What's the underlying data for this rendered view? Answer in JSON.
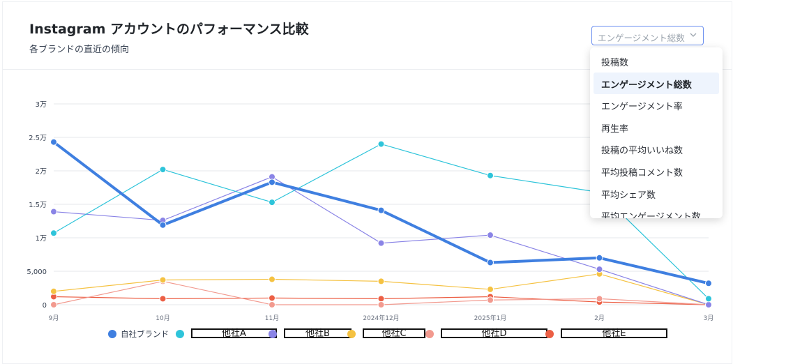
{
  "header": {
    "title": "Instagram アカウントのパフォーマンス比較",
    "subtitle": "各ブランドの直近の傾向"
  },
  "metric_select": {
    "value": "エンゲージメント総数",
    "options": [
      "投稿数",
      "エンゲージメント総数",
      "エンゲージメント率",
      "再生率",
      "投稿の平均いいね数",
      "平均投稿コメント数",
      "平均シェア数",
      "平均エンゲージメント数"
    ],
    "selected_index": 1
  },
  "chart_data": {
    "type": "line",
    "title": "",
    "xlabel": "",
    "ylabel": "",
    "categories": [
      "9月",
      "10月",
      "11月",
      "2024年12月",
      "2025年1月",
      "2月",
      "3月"
    ],
    "ylim": [
      0,
      30000
    ],
    "yticks": [
      {
        "value": 0,
        "label": "0"
      },
      {
        "value": 5000,
        "label": "5,000"
      },
      {
        "value": 10000,
        "label": "1万"
      },
      {
        "value": 15000,
        "label": "1.5万"
      },
      {
        "value": 20000,
        "label": "2万"
      },
      {
        "value": 25000,
        "label": "2.5万"
      },
      {
        "value": 30000,
        "label": "3万"
      }
    ],
    "grid": true,
    "legend_position": "bottom",
    "series": [
      {
        "name": "自社ブランド",
        "color": "#3f7fe0",
        "values": [
          24300,
          11900,
          18300,
          14100,
          6300,
          7000,
          3200
        ]
      },
      {
        "name": "他社A",
        "color": "#2ec4da",
        "values": [
          10700,
          20200,
          15300,
          24000,
          19300,
          16800,
          900
        ]
      },
      {
        "name": "他社B",
        "color": "#8a84e6",
        "values": [
          13900,
          12600,
          19100,
          9200,
          10400,
          5300,
          0
        ]
      },
      {
        "name": "他社C",
        "color": "#f5c242",
        "values": [
          2000,
          3700,
          3800,
          3500,
          2300,
          4600,
          0
        ]
      },
      {
        "name": "他社D",
        "color": "#f29a8f",
        "values": [
          0,
          3500,
          0,
          0,
          700,
          900,
          0
        ]
      },
      {
        "name": "他社E",
        "color": "#ec5f45",
        "values": [
          1200,
          900,
          1000,
          900,
          1200,
          400,
          0
        ]
      }
    ]
  }
}
